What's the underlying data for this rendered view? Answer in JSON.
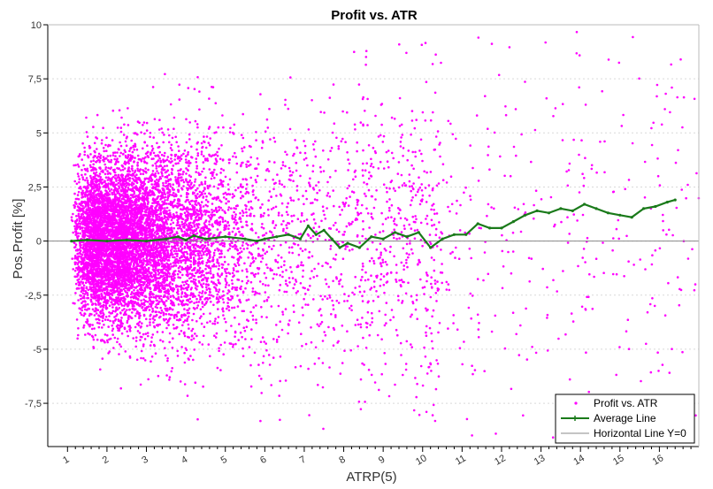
{
  "chart_data": {
    "type": "scatter",
    "title": "Profit vs. ATR",
    "xlabel": "ATRP(5)",
    "ylabel": "Pos.Profit [%]",
    "xlim": [
      0.5,
      17
    ],
    "ylim": [
      -9.5,
      10
    ],
    "x_ticks": [
      "1",
      "2",
      "3",
      "4",
      "5",
      "6",
      "7",
      "8",
      "9",
      "10",
      "11",
      "12",
      "13",
      "14",
      "15",
      "16"
    ],
    "y_ticks": [
      "10",
      "7,5",
      "5",
      "2,5",
      "0",
      "-2,5",
      "-5",
      "-7,5"
    ],
    "y_tick_values": [
      10,
      7.5,
      5,
      2.5,
      0,
      -2.5,
      -5,
      -7.5
    ],
    "grid": true,
    "legend_position": "bottom-right",
    "colors": {
      "scatter": "#ff00ff",
      "average": "#1a7a1a",
      "zero_line": "#888888",
      "axis": "#000000",
      "grid": "#d9d9d9"
    },
    "series": [
      {
        "name": "Profit vs. ATR",
        "kind": "scatter",
        "note_values": "dense random cloud; centered near y=0, heaviest at x≈1.5–5, thinning to the right",
        "x_range": [
          1.0,
          17.0
        ],
        "y_range": [
          -9.5,
          10
        ]
      },
      {
        "name": "Average Line",
        "kind": "line",
        "x": [
          1.1,
          1.5,
          2.0,
          2.5,
          3.0,
          3.5,
          3.8,
          4.0,
          4.2,
          4.5,
          5.0,
          5.5,
          5.8,
          6.0,
          6.3,
          6.6,
          6.9,
          7.1,
          7.3,
          7.5,
          7.7,
          7.9,
          8.1,
          8.4,
          8.7,
          9.0,
          9.3,
          9.6,
          9.9,
          10.2,
          10.5,
          10.8,
          11.1,
          11.4,
          11.7,
          12.0,
          12.3,
          12.6,
          12.9,
          13.2,
          13.5,
          13.8,
          14.1,
          14.4,
          14.7,
          15.0,
          15.3,
          15.6,
          15.9,
          16.2,
          16.4
        ],
        "y": [
          0.0,
          0.05,
          0.0,
          0.05,
          0.0,
          0.1,
          0.2,
          0.05,
          0.25,
          0.1,
          0.2,
          0.1,
          0.0,
          0.1,
          0.2,
          0.3,
          0.1,
          0.7,
          0.3,
          0.5,
          0.1,
          -0.3,
          -0.1,
          -0.3,
          0.2,
          0.1,
          0.4,
          0.2,
          0.4,
          -0.3,
          0.1,
          0.3,
          0.3,
          0.8,
          0.6,
          0.6,
          0.9,
          1.2,
          1.4,
          1.3,
          1.5,
          1.4,
          1.7,
          1.5,
          1.3,
          1.2,
          1.1,
          1.5,
          1.6,
          1.8,
          1.9
        ]
      },
      {
        "name": "Horizontal Line Y=0",
        "kind": "hline",
        "y": 0
      }
    ]
  }
}
